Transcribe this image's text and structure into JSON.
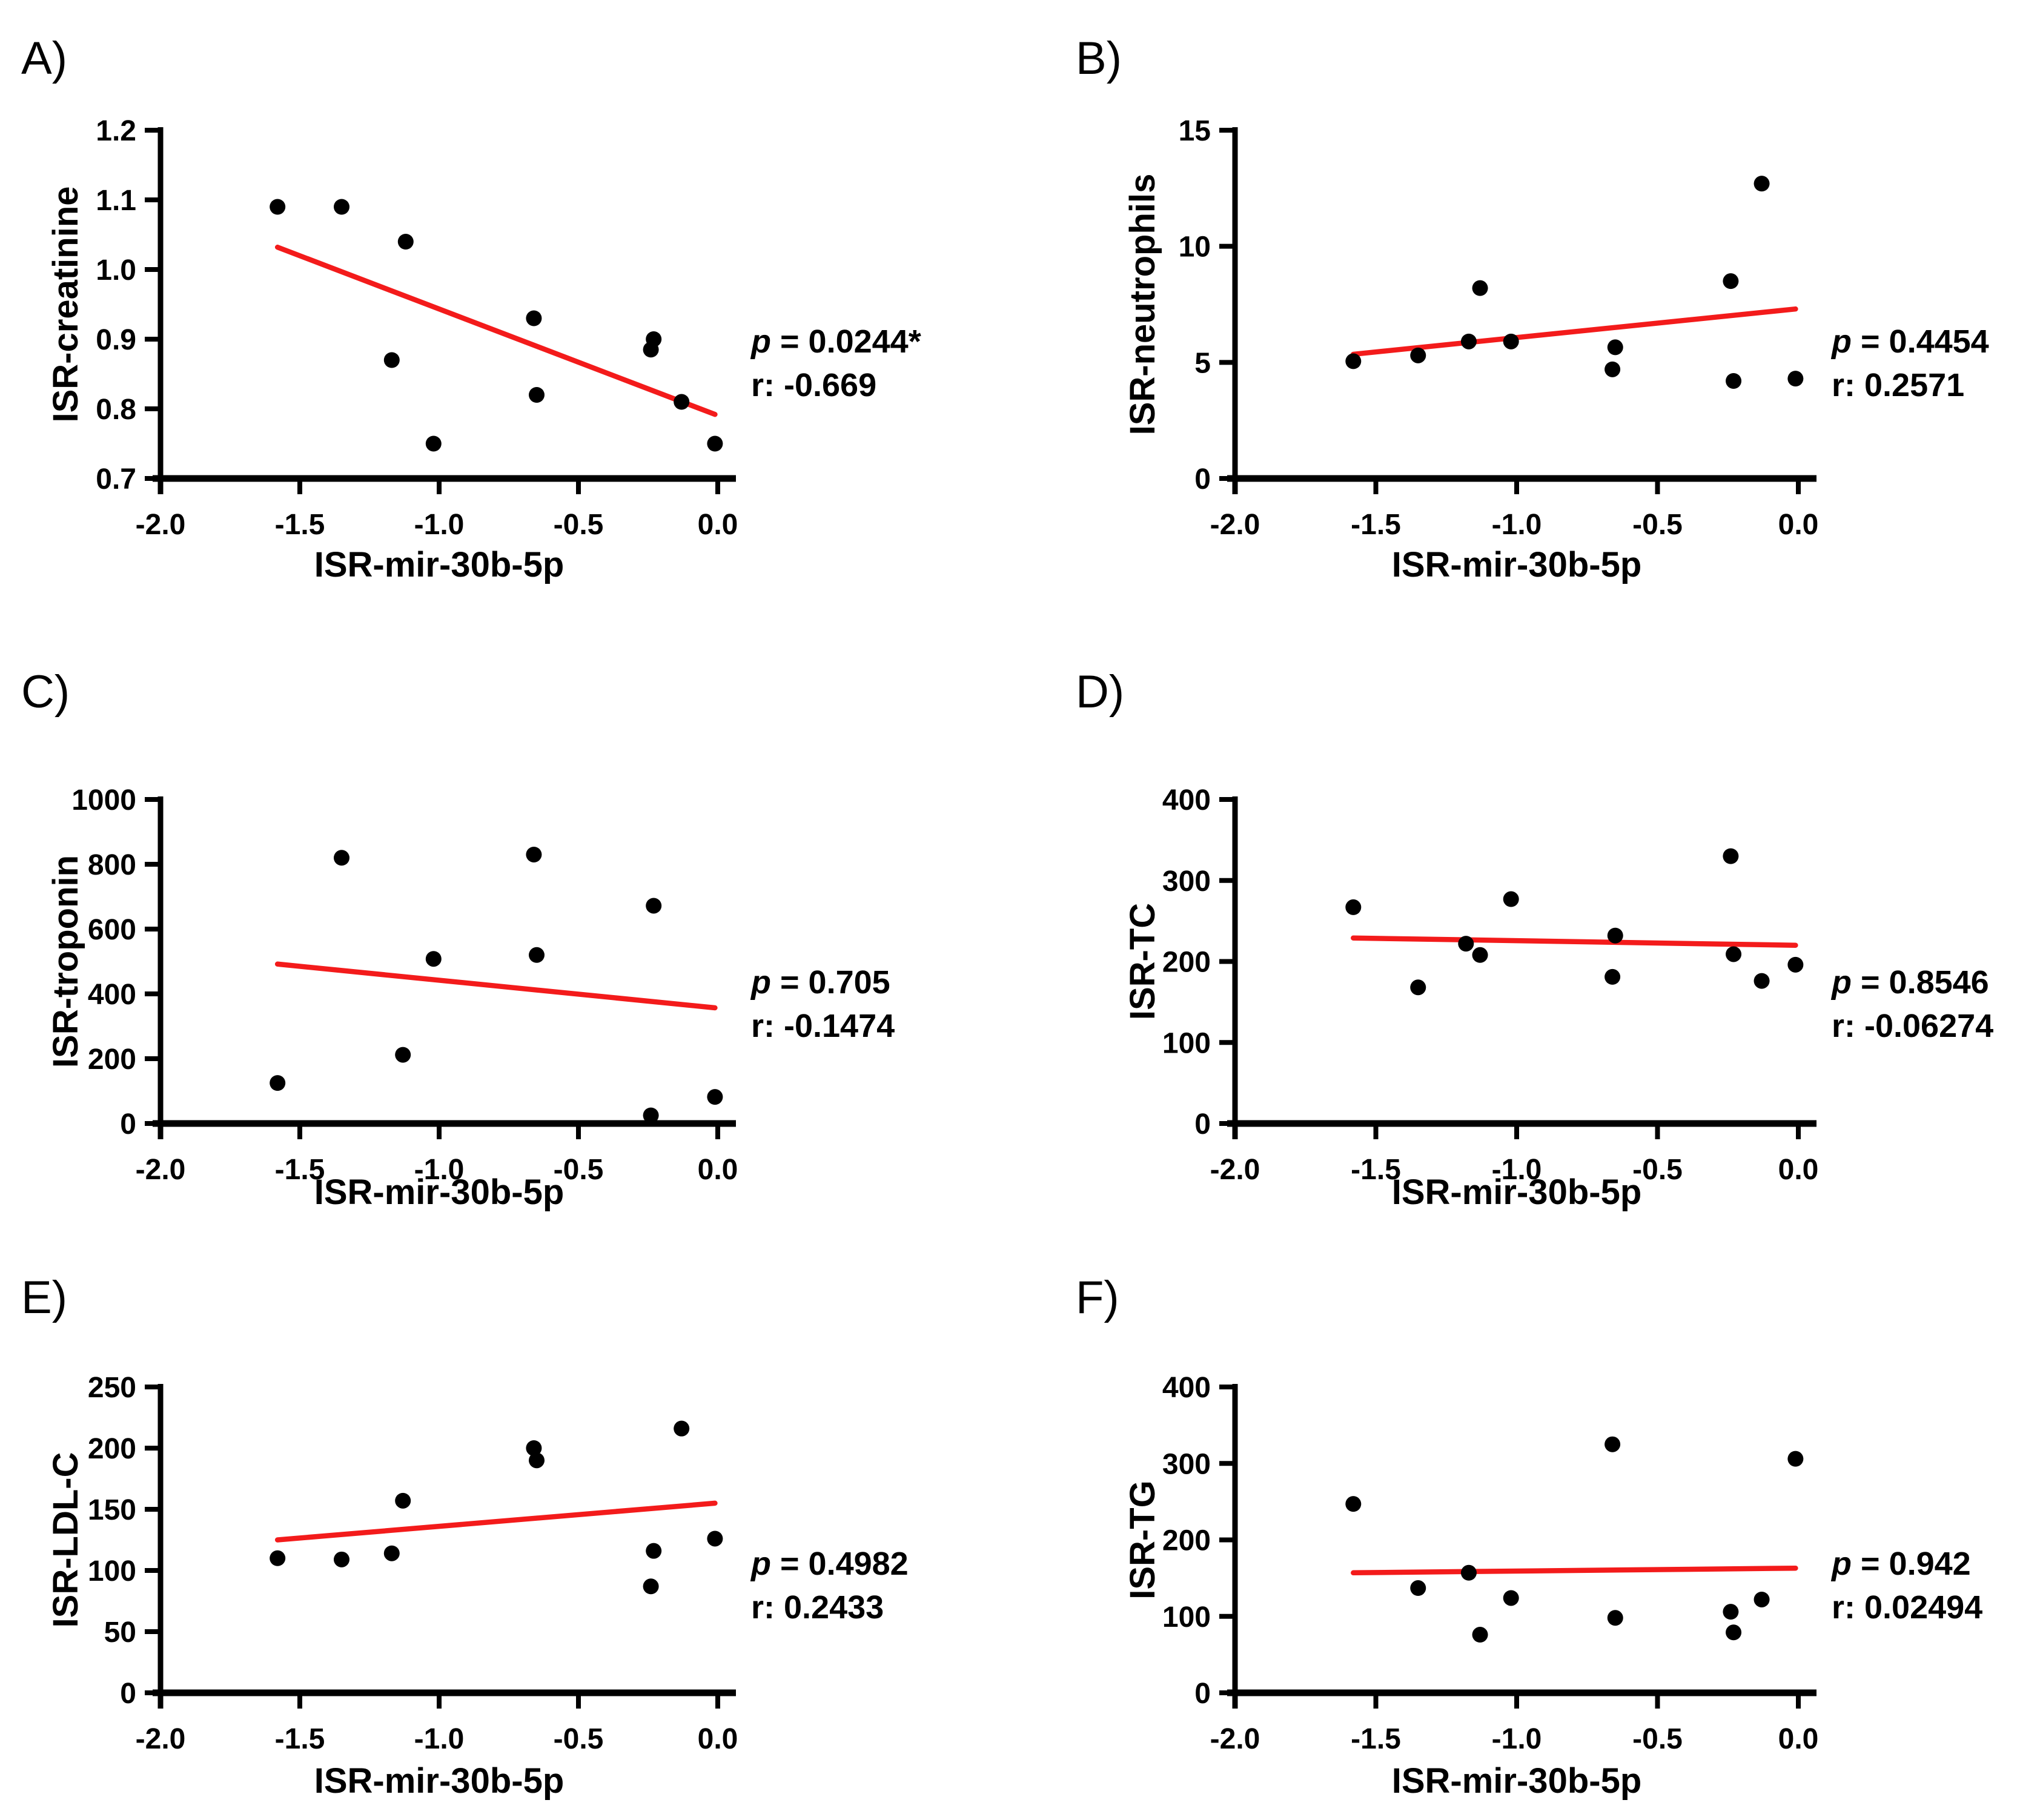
{
  "figure": {
    "background": "#ffffff",
    "point_color": "#000000",
    "axis_color": "#000000",
    "regression_line_color": "#f31b1b",
    "stats_labels": {
      "p_prefix": "p",
      "p_equals": " = ",
      "r_prefix": "r: "
    }
  },
  "chart_data": [
    {
      "type": "scatter",
      "panel_letter": "A)",
      "xlabel": "ISR-mir-30b-5p",
      "ylabel": "ISR-creatinine",
      "xlim": [
        -2.0,
        0.0
      ],
      "ylim": [
        0.7,
        1.2
      ],
      "x_tick_values": [
        -2.0,
        -1.5,
        -1.0,
        -0.5,
        0.0
      ],
      "x_tick_labels": [
        "-2.0",
        "-1.5",
        "-1.0",
        "-0.5",
        "0.0"
      ],
      "y_tick_values": [
        0.7,
        0.8,
        0.9,
        1.0,
        1.1,
        1.2
      ],
      "y_tick_labels": [
        "0.7",
        "0.8",
        "0.9",
        "1.0",
        "1.1",
        "1.2"
      ],
      "grid": false,
      "points": [
        [
          -1.58,
          1.09
        ],
        [
          -1.35,
          1.09
        ],
        [
          -1.12,
          1.04
        ],
        [
          -1.17,
          0.87
        ],
        [
          -1.02,
          0.75
        ],
        [
          -0.66,
          0.93
        ],
        [
          -0.65,
          0.82
        ],
        [
          -0.23,
          0.9
        ],
        [
          -0.24,
          0.885
        ],
        [
          -0.13,
          0.81
        ],
        [
          -0.01,
          0.75
        ]
      ],
      "regression_line": {
        "x": [
          -1.58,
          -0.01
        ],
        "y": [
          1.032,
          0.792
        ]
      },
      "p_value": "0.0244*",
      "r_value": "-0.669"
    },
    {
      "type": "scatter",
      "panel_letter": "B)",
      "xlabel": "ISR-mir-30b-5p",
      "ylabel": "ISR-neutrophils",
      "xlim": [
        -2.0,
        0.0
      ],
      "ylim": [
        0,
        15
      ],
      "x_tick_values": [
        -2.0,
        -1.5,
        -1.0,
        -0.5,
        0.0
      ],
      "x_tick_labels": [
        "-2.0",
        "-1.5",
        "-1.0",
        "-0.5",
        "0.0"
      ],
      "y_tick_values": [
        0,
        5,
        10,
        15
      ],
      "y_tick_labels": [
        "0",
        "5",
        "10",
        "15"
      ],
      "grid": false,
      "points": [
        [
          -1.58,
          5.05
        ],
        [
          -1.35,
          5.3
        ],
        [
          -1.17,
          5.9
        ],
        [
          -1.13,
          8.2
        ],
        [
          -1.02,
          5.9
        ],
        [
          -0.65,
          5.65
        ],
        [
          -0.66,
          4.7
        ],
        [
          -0.24,
          8.5
        ],
        [
          -0.23,
          4.2
        ],
        [
          -0.13,
          12.7
        ],
        [
          -0.01,
          4.3
        ]
      ],
      "regression_line": {
        "x": [
          -1.58,
          -0.01
        ],
        "y": [
          5.35,
          7.3
        ]
      },
      "p_value": "0.4454",
      "r_value": "0.2571"
    },
    {
      "type": "scatter",
      "panel_letter": "C)",
      "xlabel": "ISR-mir-30b-5p",
      "ylabel": "ISR-troponin",
      "xlim": [
        -2.0,
        0.0
      ],
      "ylim": [
        0,
        1000
      ],
      "x_tick_values": [
        -2.0,
        -1.5,
        -1.0,
        -0.5,
        0.0
      ],
      "x_tick_labels": [
        "-2.0",
        "-1.5",
        "-1.0",
        "-0.5",
        "0.0"
      ],
      "y_tick_values": [
        0,
        200,
        400,
        600,
        800,
        1000
      ],
      "y_tick_labels": [
        "0",
        "200",
        "400",
        "600",
        "800",
        "1000"
      ],
      "grid": false,
      "points": [
        [
          -1.58,
          125
        ],
        [
          -1.35,
          820
        ],
        [
          -1.13,
          212
        ],
        [
          -1.02,
          508
        ],
        [
          -0.66,
          830
        ],
        [
          -0.65,
          520
        ],
        [
          -0.23,
          672
        ],
        [
          -0.24,
          25
        ],
        [
          -0.01,
          82
        ]
      ],
      "regression_line": {
        "x": [
          -1.58,
          -0.01
        ],
        "y": [
          492,
          357
        ]
      },
      "p_value": "0.705",
      "r_value": "-0.1474"
    },
    {
      "type": "scatter",
      "panel_letter": "D)",
      "xlabel": "ISR-mir-30b-5p",
      "ylabel": "ISR-TC",
      "xlim": [
        -2.0,
        0.0
      ],
      "ylim": [
        0,
        400
      ],
      "x_tick_values": [
        -2.0,
        -1.5,
        -1.0,
        -0.5,
        0.0
      ],
      "x_tick_labels": [
        "-2.0",
        "-1.5",
        "-1.0",
        "-0.5",
        "0.0"
      ],
      "y_tick_values": [
        0,
        100,
        200,
        300,
        400
      ],
      "y_tick_labels": [
        "0",
        "100",
        "200",
        "300",
        "400"
      ],
      "grid": false,
      "points": [
        [
          -1.58,
          267
        ],
        [
          -1.35,
          168
        ],
        [
          -1.18,
          222
        ],
        [
          -1.13,
          208
        ],
        [
          -1.02,
          277
        ],
        [
          -0.65,
          232
        ],
        [
          -0.66,
          181
        ],
        [
          -0.24,
          330
        ],
        [
          -0.23,
          209
        ],
        [
          -0.13,
          176
        ],
        [
          -0.01,
          196
        ]
      ],
      "regression_line": {
        "x": [
          -1.58,
          -0.01
        ],
        "y": [
          229,
          220
        ]
      },
      "p_value": "0.8546",
      "r_value": "-0.06274"
    },
    {
      "type": "scatter",
      "panel_letter": "E)",
      "xlabel": "ISR-mir-30b-5p",
      "ylabel": "ISR-LDL-C",
      "xlim": [
        -2.0,
        0.0
      ],
      "ylim": [
        0,
        250
      ],
      "x_tick_values": [
        -2.0,
        -1.5,
        -1.0,
        -0.5,
        0.0
      ],
      "x_tick_labels": [
        "-2.0",
        "-1.5",
        "-1.0",
        "-0.5",
        "0.0"
      ],
      "y_tick_values": [
        0,
        50,
        100,
        150,
        200,
        250
      ],
      "y_tick_labels": [
        "0",
        "50",
        "100",
        "150",
        "200",
        "250"
      ],
      "grid": false,
      "points": [
        [
          -1.58,
          110
        ],
        [
          -1.35,
          109
        ],
        [
          -1.17,
          114
        ],
        [
          -1.13,
          157
        ],
        [
          -0.66,
          200
        ],
        [
          -0.65,
          190
        ],
        [
          -0.23,
          116
        ],
        [
          -0.24,
          87
        ],
        [
          -0.13,
          216
        ],
        [
          -0.01,
          126
        ]
      ],
      "regression_line": {
        "x": [
          -1.58,
          -0.01
        ],
        "y": [
          125,
          155
        ]
      },
      "p_value": "0.4982",
      "r_value": "0.2433"
    },
    {
      "type": "scatter",
      "panel_letter": "F)",
      "xlabel": "ISR-mir-30b-5p",
      "ylabel": "ISR-TG",
      "xlim": [
        -2.0,
        0.0
      ],
      "ylim": [
        0,
        400
      ],
      "x_tick_values": [
        -2.0,
        -1.5,
        -1.0,
        -0.5,
        0.0
      ],
      "x_tick_labels": [
        "-2.0",
        "-1.5",
        "-1.0",
        "-0.5",
        "0.0"
      ],
      "y_tick_values": [
        0,
        100,
        200,
        300,
        400
      ],
      "y_tick_labels": [
        "0",
        "100",
        "200",
        "300",
        "400"
      ],
      "grid": false,
      "points": [
        [
          -1.58,
          247
        ],
        [
          -1.35,
          137
        ],
        [
          -1.17,
          157
        ],
        [
          -1.13,
          76
        ],
        [
          -1.02,
          124
        ],
        [
          -0.66,
          325
        ],
        [
          -0.65,
          98
        ],
        [
          -0.24,
          106
        ],
        [
          -0.23,
          79
        ],
        [
          -0.13,
          122
        ],
        [
          -0.01,
          306
        ]
      ],
      "regression_line": {
        "x": [
          -1.58,
          -0.01
        ],
        "y": [
          157,
          163
        ]
      },
      "p_value": "0.942",
      "r_value": "0.02494"
    }
  ]
}
